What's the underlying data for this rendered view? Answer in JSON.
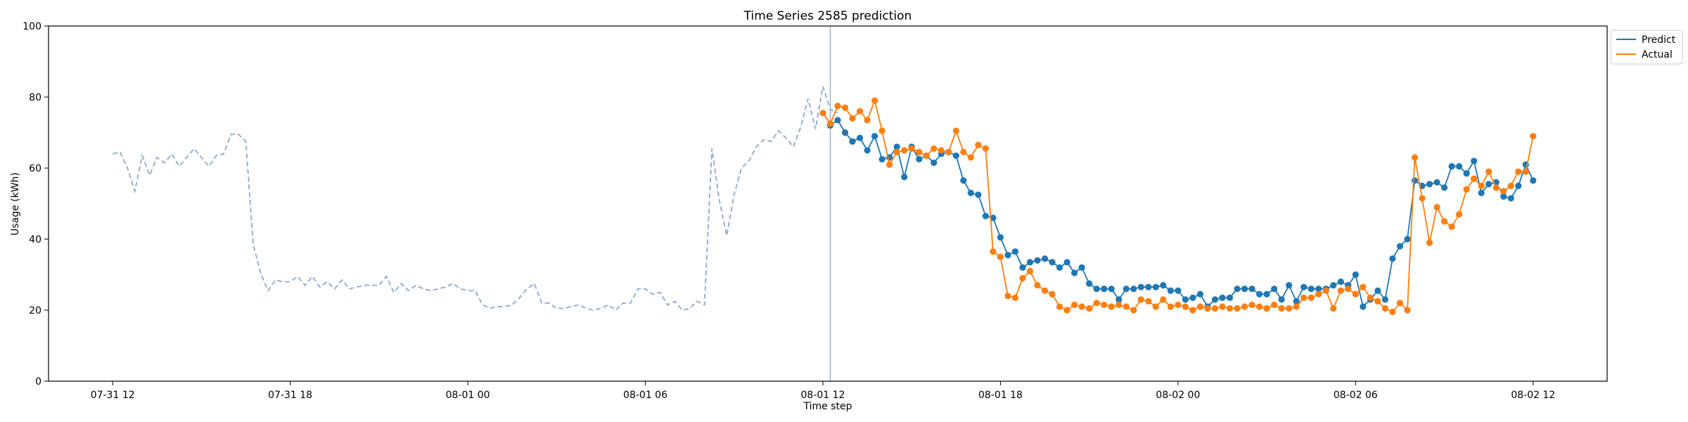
{
  "chart_data": {
    "type": "line",
    "title": "Time Series 2585 prediction",
    "xlabel": "Time step",
    "ylabel": "Usage (kWh)",
    "ylim": [
      0,
      100
    ],
    "yticks": [
      0,
      20,
      40,
      60,
      80,
      100
    ],
    "xlim": [
      "07-31 09:50",
      "08-02 14:30"
    ],
    "xticks": [
      "07-31 12",
      "07-31 18",
      "08-01 00",
      "08-01 06",
      "08-01 12",
      "08-01 18",
      "08-02 00",
      "08-02 06",
      "08-02 12"
    ],
    "grid": false,
    "legend_position": "outside top-right",
    "forecast_start": "08-01 12:15",
    "history": {
      "start": "07-31 12:00",
      "step_minutes": 15,
      "color": "#8da9cc",
      "values": [
        64,
        64.5,
        60,
        53.5,
        63.5,
        58,
        63,
        61.5,
        64,
        60.5,
        63,
        65.5,
        63,
        60.5,
        63.5,
        64,
        69.5,
        69.5,
        67.5,
        38.5,
        30.5,
        25.5,
        28.5,
        28,
        28,
        29.5,
        27,
        29.5,
        26.5,
        28,
        26,
        28.5,
        26,
        26.5,
        27,
        27,
        27,
        29.5,
        25,
        27.5,
        25.5,
        27,
        26,
        25.5,
        26,
        26.5,
        27.5,
        26,
        25.5,
        25.5,
        21.5,
        20.5,
        21,
        21,
        21.5,
        23.5,
        26,
        27.5,
        22,
        22,
        20.5,
        20.5,
        21,
        21.5,
        20.5,
        20,
        20.5,
        21.5,
        20,
        22,
        22,
        26,
        26,
        24.5,
        25,
        21.5,
        22.5,
        20,
        20.5,
        22.5,
        21.5,
        65.5,
        51,
        41,
        52.5,
        60,
        62,
        66,
        68,
        67.5,
        70.5,
        68.5,
        66,
        71.5,
        79.5,
        71,
        83,
        76.5,
        75.5
      ]
    },
    "series": [
      {
        "name": "Predict",
        "color": "#1f77b4",
        "start": "08-01 12:15",
        "step_minutes": 15,
        "values": [
          72,
          73.5,
          70,
          67.5,
          68.5,
          65,
          69,
          62.5,
          63,
          66,
          57.5,
          66,
          62.5,
          63.5,
          61.5,
          64,
          64.5,
          63.5,
          56.5,
          53,
          52.5,
          46.5,
          46,
          40.5,
          35.5,
          36.5,
          32,
          33.5,
          34,
          34.5,
          33.5,
          32,
          33.5,
          30.5,
          32,
          27.5,
          26,
          26,
          26,
          23,
          26,
          26,
          26.5,
          26.5,
          26.5,
          27,
          25.5,
          25.5,
          23,
          23.5,
          24.5,
          21,
          23,
          23.5,
          23.5,
          26,
          26,
          26,
          24.5,
          24.5,
          26,
          23,
          27,
          22.5,
          26.5,
          26,
          26,
          26,
          27,
          28,
          27,
          30,
          21,
          23,
          25.5,
          23,
          34.5,
          38,
          40,
          56.5,
          55,
          55.5,
          56,
          54.5,
          60.5,
          60.5,
          58.5,
          62,
          53,
          55.5,
          56,
          52,
          51.5,
          55,
          61,
          56.5
        ]
      },
      {
        "name": "Actual",
        "color": "#ff7f0e",
        "start": "08-01 12:00",
        "step_minutes": 15,
        "values": [
          75.5,
          72.5,
          77.5,
          77,
          74,
          76,
          73.5,
          79,
          70.5,
          61,
          64.5,
          65,
          65.5,
          64.5,
          63.5,
          65.5,
          65,
          64.5,
          70.5,
          64.5,
          63,
          66.5,
          65.5,
          36.5,
          35,
          24,
          23.5,
          29,
          31,
          27,
          25.5,
          24.5,
          21,
          20,
          21.5,
          21,
          20.5,
          22,
          21.5,
          21,
          21.5,
          21,
          20,
          23,
          22.5,
          21,
          23,
          21,
          21.5,
          21,
          20,
          21,
          20.5,
          20.5,
          21,
          20.5,
          20.5,
          21,
          21.5,
          21,
          20.5,
          21.5,
          20.5,
          20.5,
          21,
          23.5,
          23.5,
          24.5,
          25.5,
          20.5,
          25.5,
          26,
          24.5,
          26.5,
          23.5,
          22.5,
          20.5,
          19.5,
          22,
          20,
          63,
          51.5,
          39,
          49,
          45,
          43.5,
          47,
          54,
          57,
          55,
          59,
          54.5,
          53.5,
          55,
          59,
          59,
          69
        ]
      }
    ]
  }
}
